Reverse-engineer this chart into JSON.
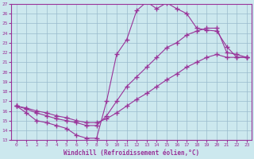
{
  "xlabel": "Windchill (Refroidissement éolien,°C)",
  "bg_color": "#cce8ee",
  "line_color": "#993399",
  "grid_color": "#99bbcc",
  "xlim": [
    -0.5,
    23.5
  ],
  "ylim": [
    13,
    27
  ],
  "xticks": [
    0,
    1,
    2,
    3,
    4,
    5,
    6,
    7,
    8,
    9,
    10,
    11,
    12,
    13,
    14,
    15,
    16,
    17,
    18,
    19,
    20,
    21,
    22,
    23
  ],
  "yticks": [
    13,
    14,
    15,
    16,
    17,
    18,
    19,
    20,
    21,
    22,
    23,
    24,
    25,
    26,
    27
  ],
  "line1_y": [
    16.5,
    15.8,
    15.0,
    14.8,
    14.5,
    14.2,
    13.5,
    13.2,
    13.2,
    17.0,
    21.8,
    23.3,
    26.3,
    27.2,
    26.5,
    27.1,
    26.5,
    26.0,
    24.5,
    24.3,
    24.2,
    22.6,
    21.5,
    21.5
  ],
  "line2_y": [
    16.5,
    16.2,
    15.8,
    15.5,
    15.2,
    15.0,
    14.8,
    14.5,
    14.5,
    15.5,
    17.0,
    18.5,
    19.5,
    20.5,
    21.5,
    22.5,
    23.0,
    23.8,
    24.2,
    24.5,
    24.5,
    22.0,
    21.8,
    21.5
  ],
  "line3_y": [
    16.5,
    16.3,
    16.0,
    15.8,
    15.5,
    15.3,
    15.0,
    14.8,
    14.8,
    15.2,
    15.8,
    16.5,
    17.2,
    17.8,
    18.5,
    19.2,
    19.8,
    20.5,
    21.0,
    21.5,
    21.8,
    21.5,
    21.5,
    21.5
  ]
}
